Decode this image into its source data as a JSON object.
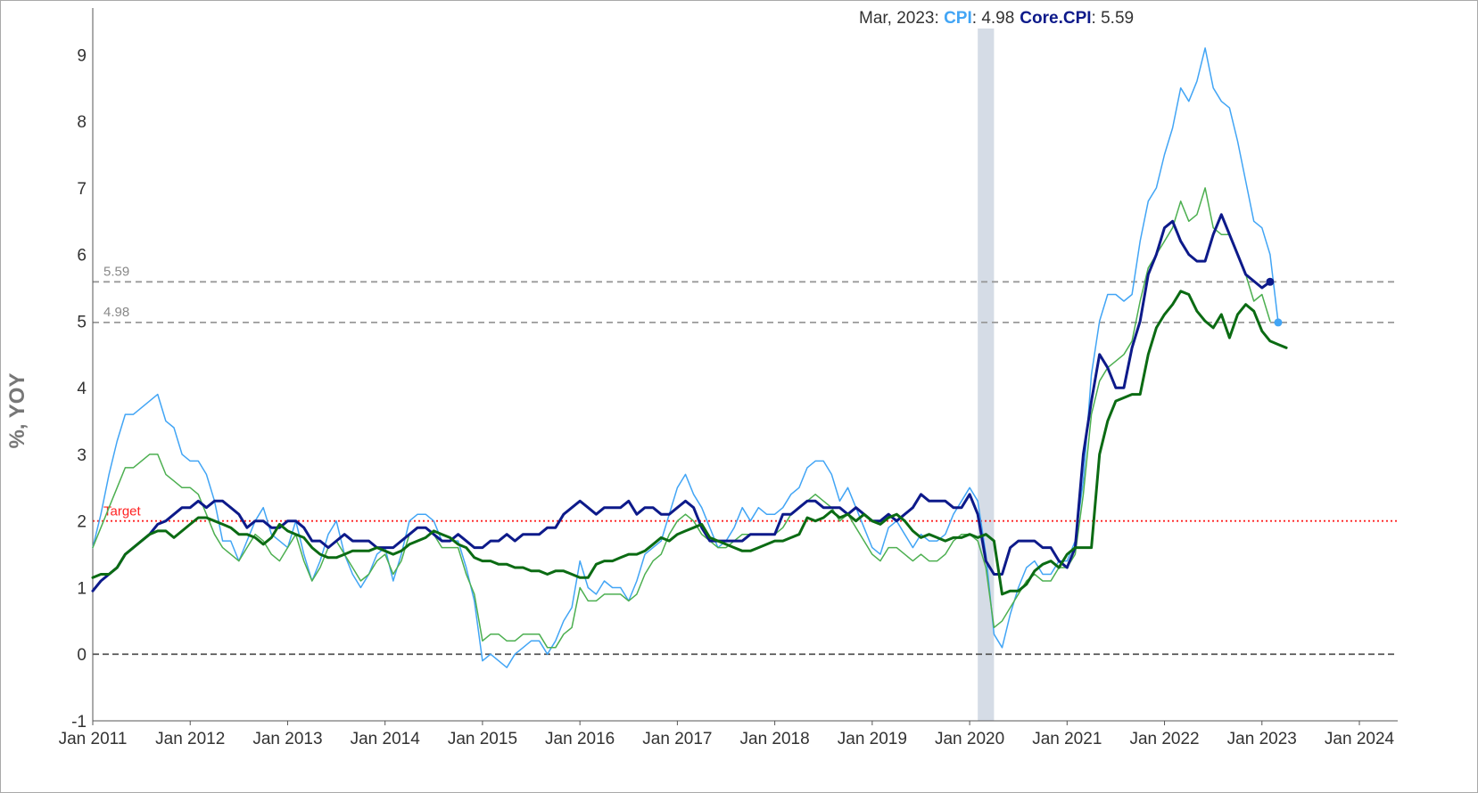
{
  "tooltip": {
    "date": "Mar, 2023",
    "sep": ": ",
    "cpi_label": "CPI",
    "cpi_value": "4.98",
    "core_label": "Core.CPI",
    "core_value": "5.59"
  },
  "colors": {
    "cpi": "#42a5f5",
    "core_cpi": "#0d1a8a",
    "green_light": "#4caf50",
    "green_dark": "#0b6b13",
    "target": "#ff2222",
    "recession": "#d5dce6"
  },
  "chart_data": {
    "type": "line",
    "ylabel": "%, YOY",
    "ylim": [
      -1,
      9.7
    ],
    "yticks": [
      -1,
      0,
      1,
      2,
      3,
      4,
      5,
      6,
      7,
      8,
      9
    ],
    "xlim": [
      "2011-01",
      "2024-01"
    ],
    "xticks": [
      "Jan 2011",
      "Jan 2012",
      "Jan 2013",
      "Jan 2014",
      "Jan 2015",
      "Jan 2016",
      "Jan 2017",
      "Jan 2018",
      "Jan 2019",
      "Jan 2020",
      "Jan 2021",
      "Jan 2022",
      "Jan 2023",
      "Jan 2024"
    ],
    "reference_lines": [
      {
        "value": 5.59,
        "label": "5.59",
        "style": "dashed"
      },
      {
        "value": 4.98,
        "label": "4.98",
        "style": "dashed"
      },
      {
        "value": 2,
        "label": "Target",
        "style": "dotted"
      },
      {
        "value": 0,
        "label": "",
        "style": "dashed"
      }
    ],
    "shaded_region": {
      "from": "2020-02",
      "to": "2020-04"
    },
    "series": [
      {
        "name": "CPI",
        "color": "#42a5f5",
        "width": 1.5,
        "start": "2011-01",
        "values": [
          1.6,
          2.1,
          2.7,
          3.2,
          3.6,
          3.6,
          3.7,
          3.8,
          3.9,
          3.5,
          3.4,
          3.0,
          2.9,
          2.9,
          2.7,
          2.3,
          1.7,
          1.7,
          1.4,
          1.7,
          2.0,
          2.2,
          1.8,
          1.7,
          1.6,
          2.0,
          1.5,
          1.1,
          1.4,
          1.8,
          2.0,
          1.5,
          1.2,
          1.0,
          1.2,
          1.5,
          1.6,
          1.1,
          1.5,
          2.0,
          2.1,
          2.1,
          2.0,
          1.7,
          1.7,
          1.7,
          1.3,
          0.8,
          -0.1,
          0.0,
          -0.1,
          -0.2,
          0.0,
          0.1,
          0.2,
          0.2,
          0.0,
          0.2,
          0.5,
          0.7,
          1.4,
          1.0,
          0.9,
          1.1,
          1.0,
          1.0,
          0.8,
          1.1,
          1.5,
          1.6,
          1.7,
          2.1,
          2.5,
          2.7,
          2.4,
          2.2,
          1.9,
          1.6,
          1.7,
          1.9,
          2.2,
          2.0,
          2.2,
          2.1,
          2.1,
          2.2,
          2.4,
          2.5,
          2.8,
          2.9,
          2.9,
          2.7,
          2.3,
          2.5,
          2.2,
          1.9,
          1.6,
          1.5,
          1.9,
          2.0,
          1.8,
          1.6,
          1.8,
          1.7,
          1.7,
          1.8,
          2.1,
          2.3,
          2.5,
          2.3,
          1.5,
          0.3,
          0.1,
          0.6,
          1.0,
          1.3,
          1.4,
          1.2,
          1.2,
          1.4,
          1.4,
          1.7,
          2.6,
          4.2,
          5.0,
          5.4,
          5.4,
          5.3,
          5.4,
          6.2,
          6.8,
          7.0,
          7.5,
          7.9,
          8.5,
          8.3,
          8.6,
          9.1,
          8.5,
          8.3,
          8.2,
          7.7,
          7.1,
          6.5,
          6.4,
          6.0,
          4.98
        ]
      },
      {
        "name": "",
        "color": "#4caf50",
        "width": 1.5,
        "start": "2011-01",
        "values": [
          1.6,
          1.9,
          2.2,
          2.5,
          2.8,
          2.8,
          2.9,
          3.0,
          3.0,
          2.7,
          2.6,
          2.5,
          2.5,
          2.4,
          2.1,
          1.8,
          1.6,
          1.5,
          1.4,
          1.6,
          1.8,
          1.7,
          1.5,
          1.4,
          1.6,
          1.8,
          1.4,
          1.1,
          1.3,
          1.6,
          1.7,
          1.5,
          1.3,
          1.1,
          1.2,
          1.4,
          1.5,
          1.2,
          1.4,
          1.8,
          1.9,
          1.9,
          1.8,
          1.6,
          1.6,
          1.6,
          1.2,
          0.9,
          0.2,
          0.3,
          0.3,
          0.2,
          0.2,
          0.3,
          0.3,
          0.3,
          0.1,
          0.1,
          0.3,
          0.4,
          1.0,
          0.8,
          0.8,
          0.9,
          0.9,
          0.9,
          0.8,
          0.9,
          1.2,
          1.4,
          1.5,
          1.8,
          2.0,
          2.1,
          2.0,
          1.8,
          1.7,
          1.6,
          1.6,
          1.7,
          1.8,
          1.8,
          1.8,
          1.8,
          1.8,
          1.9,
          2.1,
          2.2,
          2.3,
          2.4,
          2.3,
          2.2,
          2.0,
          2.1,
          1.9,
          1.7,
          1.5,
          1.4,
          1.6,
          1.6,
          1.5,
          1.4,
          1.5,
          1.4,
          1.4,
          1.5,
          1.7,
          1.8,
          1.8,
          1.7,
          1.3,
          0.4,
          0.5,
          0.7,
          0.9,
          1.1,
          1.2,
          1.1,
          1.1,
          1.3,
          1.3,
          1.5,
          2.4,
          3.6,
          4.1,
          4.3,
          4.4,
          4.5,
          4.7,
          5.3,
          5.8,
          6.0,
          6.2,
          6.4,
          6.8,
          6.5,
          6.6,
          7.0,
          6.4,
          6.3,
          6.3,
          6.0,
          5.7,
          5.3,
          5.4,
          5.0
        ]
      },
      {
        "name": "Core.CPI",
        "color": "#0d1a8a",
        "width": 3,
        "start": "2011-01",
        "values": [
          0.95,
          1.1,
          1.2,
          1.3,
          1.5,
          1.6,
          1.7,
          1.8,
          1.95,
          2.0,
          2.1,
          2.2,
          2.2,
          2.3,
          2.2,
          2.3,
          2.3,
          2.2,
          2.1,
          1.9,
          2.0,
          2.0,
          1.9,
          1.9,
          2.0,
          2.0,
          1.9,
          1.7,
          1.7,
          1.6,
          1.7,
          1.8,
          1.7,
          1.7,
          1.7,
          1.6,
          1.6,
          1.6,
          1.7,
          1.8,
          1.9,
          1.9,
          1.8,
          1.7,
          1.7,
          1.8,
          1.7,
          1.6,
          1.6,
          1.7,
          1.7,
          1.8,
          1.7,
          1.8,
          1.8,
          1.8,
          1.9,
          1.9,
          2.1,
          2.2,
          2.3,
          2.2,
          2.1,
          2.2,
          2.2,
          2.2,
          2.3,
          2.1,
          2.2,
          2.2,
          2.1,
          2.1,
          2.2,
          2.3,
          2.2,
          1.9,
          1.7,
          1.7,
          1.7,
          1.7,
          1.7,
          1.8,
          1.8,
          1.8,
          1.8,
          2.1,
          2.1,
          2.2,
          2.3,
          2.3,
          2.2,
          2.2,
          2.2,
          2.1,
          2.2,
          2.1,
          2.0,
          2.0,
          2.1,
          2.0,
          2.1,
          2.2,
          2.4,
          2.3,
          2.3,
          2.3,
          2.2,
          2.2,
          2.4,
          2.1,
          1.4,
          1.2,
          1.2,
          1.6,
          1.7,
          1.7,
          1.7,
          1.6,
          1.6,
          1.4,
          1.3,
          1.6,
          3.0,
          3.8,
          4.5,
          4.3,
          4.0,
          4.0,
          4.6,
          5.0,
          5.7,
          6.0,
          6.4,
          6.5,
          6.2,
          6.0,
          5.9,
          5.9,
          6.3,
          6.6,
          6.3,
          6.0,
          5.7,
          5.6,
          5.5,
          5.59
        ]
      },
      {
        "name": "",
        "color": "#0b6b13",
        "width": 3,
        "start": "2011-01",
        "values": [
          1.15,
          1.2,
          1.2,
          1.3,
          1.5,
          1.6,
          1.7,
          1.8,
          1.85,
          1.85,
          1.75,
          1.85,
          1.95,
          2.05,
          2.05,
          2.0,
          1.95,
          1.9,
          1.8,
          1.8,
          1.75,
          1.65,
          1.75,
          1.95,
          1.85,
          1.8,
          1.75,
          1.6,
          1.5,
          1.45,
          1.45,
          1.5,
          1.55,
          1.55,
          1.55,
          1.6,
          1.55,
          1.5,
          1.55,
          1.65,
          1.7,
          1.75,
          1.85,
          1.8,
          1.75,
          1.65,
          1.6,
          1.45,
          1.4,
          1.4,
          1.35,
          1.35,
          1.3,
          1.3,
          1.25,
          1.25,
          1.2,
          1.25,
          1.25,
          1.2,
          1.15,
          1.15,
          1.35,
          1.4,
          1.4,
          1.45,
          1.5,
          1.5,
          1.55,
          1.65,
          1.75,
          1.7,
          1.8,
          1.85,
          1.9,
          1.95,
          1.75,
          1.7,
          1.65,
          1.6,
          1.55,
          1.55,
          1.6,
          1.65,
          1.7,
          1.7,
          1.75,
          1.8,
          2.05,
          2.0,
          2.05,
          2.15,
          2.05,
          2.1,
          2.0,
          2.1,
          2.0,
          1.95,
          2.05,
          2.1,
          2.0,
          1.85,
          1.75,
          1.8,
          1.75,
          1.7,
          1.75,
          1.75,
          1.8,
          1.75,
          1.8,
          1.7,
          0.9,
          0.95,
          0.95,
          1.05,
          1.25,
          1.35,
          1.4,
          1.3,
          1.5,
          1.6,
          1.6,
          1.6,
          3.0,
          3.5,
          3.8,
          3.85,
          3.9,
          3.9,
          4.5,
          4.9,
          5.1,
          5.25,
          5.45,
          5.4,
          5.15,
          5.0,
          4.9,
          5.1,
          4.75,
          5.1,
          5.25,
          5.15,
          4.85,
          4.7,
          4.65,
          4.6
        ]
      }
    ]
  }
}
